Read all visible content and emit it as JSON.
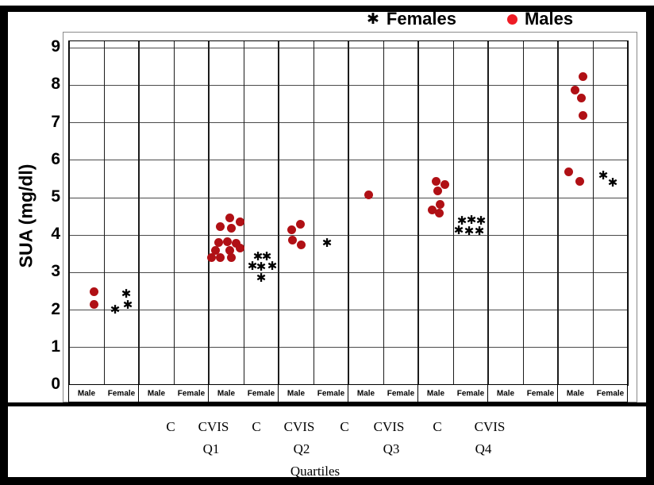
{
  "legend": {
    "females_label": "Females",
    "males_label": "Males"
  },
  "colors": {
    "male_point": "#b01015",
    "legend_male_dot": "#ee1c25",
    "female_point": "#000000",
    "gridline": "#4a4a4a"
  },
  "chart_data": {
    "type": "scatter",
    "title": "",
    "ylabel": "SUA (mg/dl)",
    "ylim": [
      0,
      9
    ],
    "yticks": [
      0,
      1,
      2,
      3,
      4,
      5,
      6,
      7,
      8,
      9
    ],
    "grid": true,
    "legend_position": "top-right",
    "series_legend": [
      {
        "name": "Females",
        "marker": "asterisk",
        "color": "#000000"
      },
      {
        "name": "Males",
        "marker": "dot",
        "color": "#ee1c25"
      }
    ],
    "sex_labels": [
      "Male",
      "Female"
    ],
    "female_marker_glyph": "✱",
    "groups": [
      {
        "males": [
          {
            "v": 2.48,
            "dx": 9
          },
          {
            "v": 2.16,
            "dx": 9
          }
        ],
        "females": [
          {
            "v": 2.42,
            "dx": 6
          },
          {
            "v": 2.12,
            "dx": 8
          },
          {
            "v": 1.99,
            "dx": -8
          }
        ]
      },
      {
        "males": [],
        "females": []
      },
      {
        "males": [
          {
            "v": 4.45,
            "dx": 4
          },
          {
            "v": 4.36,
            "dx": 17
          },
          {
            "v": 4.22,
            "dx": -8
          },
          {
            "v": 4.19,
            "dx": 6
          },
          {
            "v": 3.83,
            "dx": 1
          },
          {
            "v": 3.81,
            "dx": -10
          },
          {
            "v": 3.79,
            "dx": 12
          },
          {
            "v": 3.66,
            "dx": 17
          },
          {
            "v": 3.6,
            "dx": -14
          },
          {
            "v": 3.6,
            "dx": 4
          },
          {
            "v": 3.39,
            "dx": -19
          },
          {
            "v": 3.39,
            "dx": -8
          },
          {
            "v": 3.39,
            "dx": 6
          }
        ],
        "females": [
          {
            "v": 3.41,
            "dx": -4
          },
          {
            "v": 3.41,
            "dx": 7
          },
          {
            "v": 3.16,
            "dx": -11
          },
          {
            "v": 3.14,
            "dx": 0
          },
          {
            "v": 3.16,
            "dx": 14
          },
          {
            "v": 2.84,
            "dx": 0
          }
        ]
      },
      {
        "males": [
          {
            "v": 4.28,
            "dx": 5
          },
          {
            "v": 4.15,
            "dx": -6
          },
          {
            "v": 3.86,
            "dx": -5
          },
          {
            "v": 3.73,
            "dx": 6
          }
        ],
        "females": [
          {
            "v": 3.77,
            "dx": -5
          }
        ]
      },
      {
        "males": [
          {
            "v": 5.08,
            "dx": 3
          }
        ],
        "females": []
      },
      {
        "males": [
          {
            "v": 5.44,
            "dx": 0
          },
          {
            "v": 5.36,
            "dx": 11
          },
          {
            "v": 5.19,
            "dx": 2
          },
          {
            "v": 4.81,
            "dx": 5
          },
          {
            "v": 4.68,
            "dx": -5
          },
          {
            "v": 4.58,
            "dx": 4
          }
        ],
        "females": [
          {
            "v": 4.39,
            "dx": 1
          },
          {
            "v": 4.36,
            "dx": -11
          },
          {
            "v": 4.36,
            "dx": 13
          },
          {
            "v": 4.11,
            "dx": -15
          },
          {
            "v": 4.09,
            "dx": -2
          },
          {
            "v": 4.09,
            "dx": 11
          }
        ]
      },
      {
        "males": [],
        "females": []
      },
      {
        "males": [
          {
            "v": 8.24,
            "dx": 9
          },
          {
            "v": 7.88,
            "dx": -1
          },
          {
            "v": 7.65,
            "dx": 7
          },
          {
            "v": 7.2,
            "dx": 9
          },
          {
            "v": 5.68,
            "dx": -9
          },
          {
            "v": 5.44,
            "dx": 5
          }
        ],
        "females": [
          {
            "v": 5.57,
            "dx": -9
          },
          {
            "v": 5.38,
            "dx": 3
          }
        ]
      }
    ],
    "bottom_axis": {
      "c_cvis_labels": [
        "C",
        "CVIS",
        "C",
        "CVIS",
        "C",
        "CVIS",
        "C",
        "CVIS"
      ],
      "quartile_labels": [
        "Q1",
        "Q2",
        "Q3",
        "Q4"
      ],
      "axis_title": "Quartiles"
    }
  }
}
